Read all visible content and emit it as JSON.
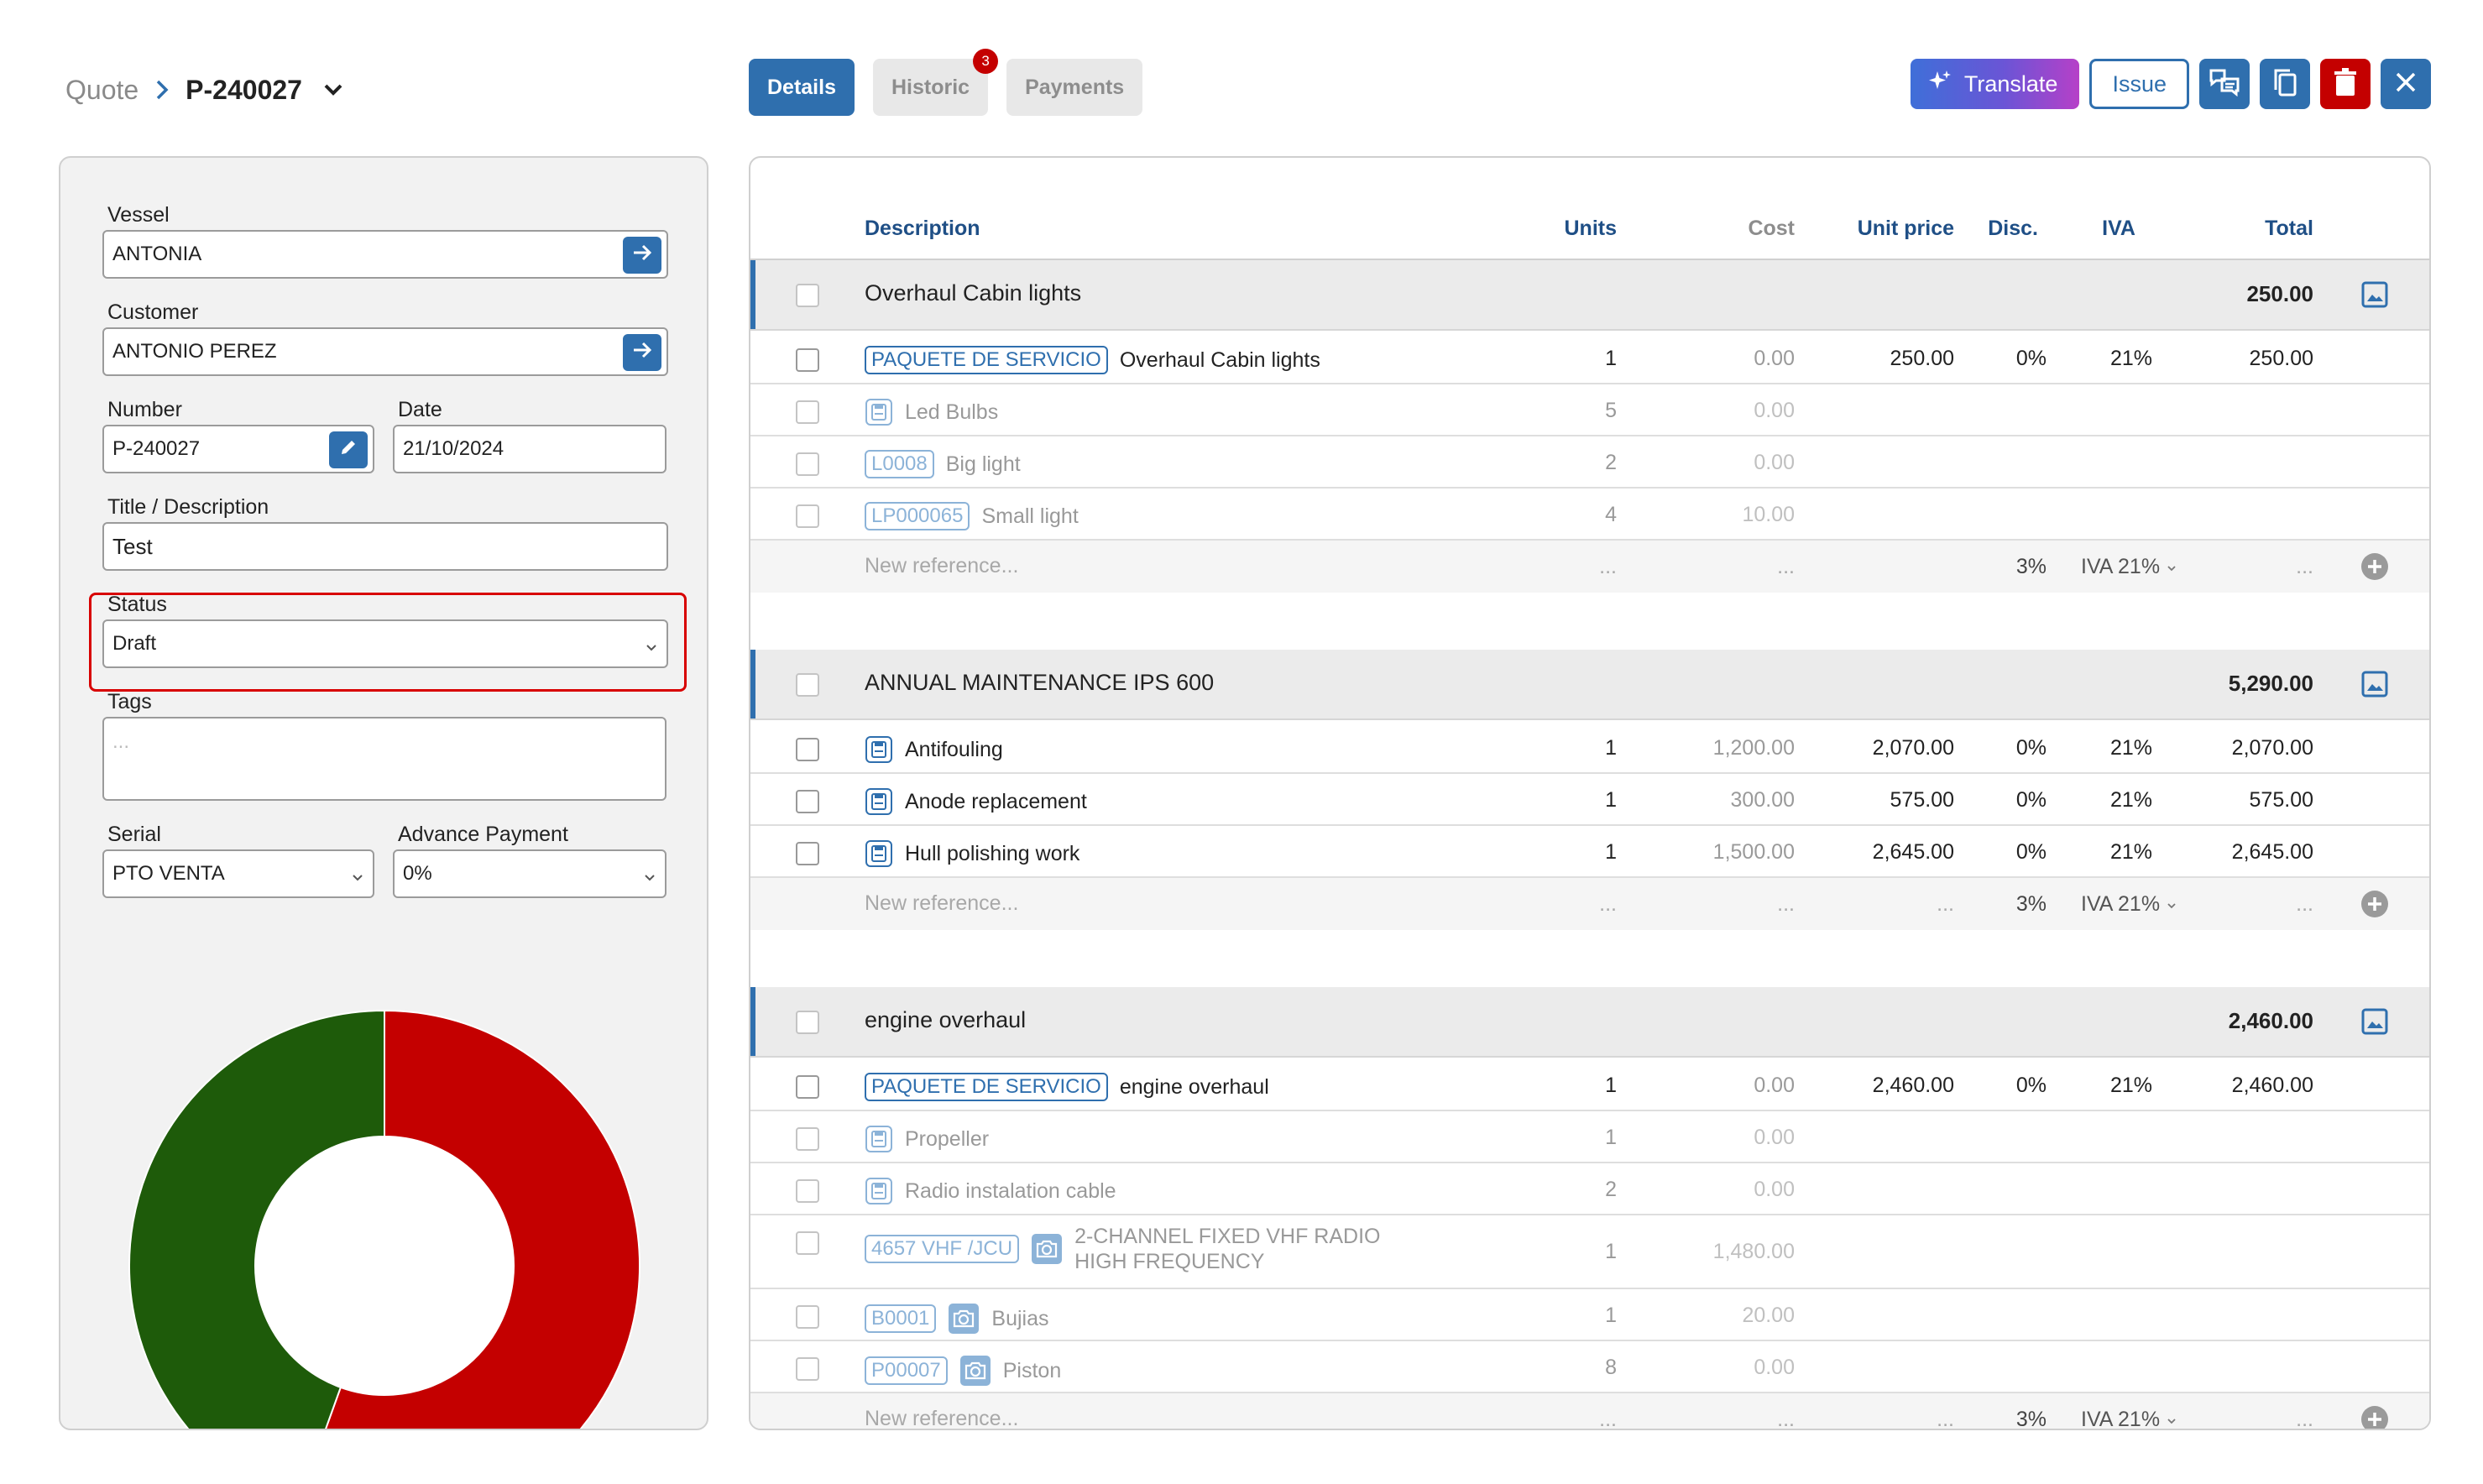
{
  "breadcrumb": {
    "root": "Quote",
    "current": "P-240027"
  },
  "tabs": [
    {
      "label": "Details",
      "active": true
    },
    {
      "label": "Historic",
      "badge": "3"
    },
    {
      "label": "Payments"
    }
  ],
  "toolbar": {
    "translate_label": "Translate",
    "issue_label": "Issue",
    "icons": [
      "sparkle-icon",
      "chat-icon",
      "copy-icon",
      "trash-icon",
      "close-icon"
    ]
  },
  "form": {
    "vessel_label": "Vessel",
    "vessel_value": "ANTONIA",
    "customer_label": "Customer",
    "customer_value": "ANTONIO PEREZ",
    "number_label": "Number",
    "number_value": "P-240027",
    "date_label": "Date",
    "date_value": "21/10/2024",
    "title_label": "Title / Description",
    "title_value": "Test",
    "status_label": "Status",
    "status_value": "Draft",
    "tags_label": "Tags",
    "tags_placeholder": "...",
    "serial_label": "Serial",
    "serial_value": "PTO VENTA",
    "advance_label": "Advance Payment",
    "advance_value": "0%"
  },
  "donut_chart": {
    "slices": [
      {
        "color": "#c40000",
        "share": 0.555
      },
      {
        "color": "#1e5b0a",
        "share": 0.445
      }
    ]
  },
  "table": {
    "headers": {
      "description": "Description",
      "units": "Units",
      "cost": "Cost",
      "unit_price": "Unit price",
      "disc": "Disc.",
      "iva": "IVA",
      "total": "Total"
    },
    "groups": [
      {
        "title": "Overhaul Cabin lights",
        "total": "250.00",
        "rows": [
          {
            "tag": "PAQUETE DE SERVICIO",
            "desc": "Overhaul Cabin lights",
            "units": "1",
            "cost": "0.00",
            "unit_price": "250.00",
            "disc": "0%",
            "iva": "21%",
            "total": "250.00"
          },
          {
            "desc": "Led Bulbs",
            "units": "5",
            "cost": "0.00"
          },
          {
            "tag": "L0008",
            "desc": "Big light",
            "units": "2",
            "cost": "0.00"
          },
          {
            "tag": "LP000065",
            "desc": "Small light",
            "units": "4",
            "cost": "10.00"
          }
        ],
        "newref": {
          "placeholder": "New reference...",
          "units": "...",
          "cost": "...",
          "disc": "3%",
          "iva": "IVA 21%",
          "total": "..."
        }
      },
      {
        "title": "ANNUAL MAINTENANCE IPS 600",
        "total": "5,290.00",
        "rows": [
          {
            "desc": "Antifouling",
            "units": "1",
            "cost": "1,200.00",
            "unit_price": "2,070.00",
            "disc": "0%",
            "iva": "21%",
            "total": "2,070.00"
          },
          {
            "desc": "Anode replacement",
            "units": "1",
            "cost": "300.00",
            "unit_price": "575.00",
            "disc": "0%",
            "iva": "21%",
            "total": "575.00"
          },
          {
            "desc": "Hull polishing work",
            "units": "1",
            "cost": "1,500.00",
            "unit_price": "2,645.00",
            "disc": "0%",
            "iva": "21%",
            "total": "2,645.00"
          }
        ],
        "newref": {
          "placeholder": "New reference...",
          "units": "...",
          "cost": "...",
          "unit_price": "...",
          "disc": "3%",
          "iva": "IVA 21%",
          "total": "..."
        }
      },
      {
        "title": "engine overhaul",
        "total": "2,460.00",
        "rows": [
          {
            "tag": "PAQUETE DE SERVICIO",
            "desc": "engine overhaul",
            "units": "1",
            "cost": "0.00",
            "unit_price": "2,460.00",
            "disc": "0%",
            "iva": "21%",
            "total": "2,460.00"
          },
          {
            "desc": "Propeller",
            "units": "1",
            "cost": "0.00"
          },
          {
            "desc": "Radio instalation cable",
            "units": "2",
            "cost": "0.00"
          },
          {
            "tag": "4657 VHF /JCU",
            "desc": "2-CHANNEL FIXED VHF RADIO HIGH FREQUENCY",
            "units": "1",
            "cost": "1,480.00"
          },
          {
            "tag": "B0001",
            "desc": "Bujias",
            "units": "1",
            "cost": "20.00"
          },
          {
            "tag": "P00007",
            "desc": "Piston",
            "units": "8",
            "cost": "0.00"
          }
        ],
        "newref": {
          "placeholder": "New reference...",
          "units": "...",
          "cost": "...",
          "unit_price": "...",
          "disc": "3%",
          "iva": "IVA 21%",
          "total": "..."
        }
      }
    ]
  }
}
